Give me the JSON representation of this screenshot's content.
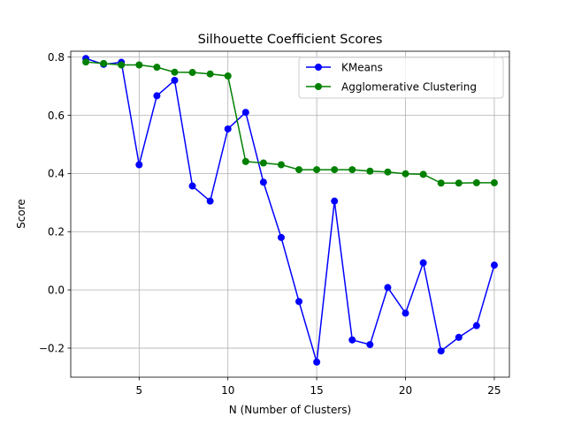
{
  "chart_data": {
    "type": "line",
    "title": "Silhouette Coefficient Scores",
    "xlabel": "N (Number of Clusters)",
    "ylabel": "Score",
    "xlim": [
      1.15,
      25.85
    ],
    "ylim": [
      -0.3,
      0.82
    ],
    "xticks": [
      5,
      10,
      15,
      20,
      25
    ],
    "yticks": [
      -0.2,
      0.0,
      0.2,
      0.4,
      0.6,
      0.8
    ],
    "ytick_labels": [
      "−0.2",
      "0.0",
      "0.2",
      "0.4",
      "0.6",
      "0.8"
    ],
    "grid": true,
    "legend_position": "top-right",
    "x": [
      2,
      3,
      4,
      5,
      6,
      7,
      8,
      9,
      10,
      11,
      12,
      13,
      14,
      15,
      16,
      17,
      18,
      19,
      20,
      21,
      22,
      23,
      24,
      25
    ],
    "series": [
      {
        "name": "KMeans",
        "color": "#0000ff",
        "marker": "circle",
        "values": [
          0.795,
          0.775,
          0.782,
          0.43,
          0.667,
          0.72,
          0.357,
          0.305,
          0.553,
          0.61,
          0.37,
          0.18,
          -0.04,
          -0.248,
          0.305,
          -0.172,
          -0.188,
          0.008,
          -0.08,
          0.093,
          -0.21,
          -0.163,
          -0.123,
          0.085
        ]
      },
      {
        "name": "Agglomerative Clustering",
        "color": "#008000",
        "marker": "circle",
        "values": [
          0.783,
          0.778,
          0.773,
          0.773,
          0.765,
          0.748,
          0.747,
          0.742,
          0.735,
          0.441,
          0.436,
          0.43,
          0.413,
          0.413,
          0.413,
          0.413,
          0.408,
          0.405,
          0.399,
          0.397,
          0.367,
          0.367,
          0.368,
          0.368
        ]
      }
    ]
  }
}
